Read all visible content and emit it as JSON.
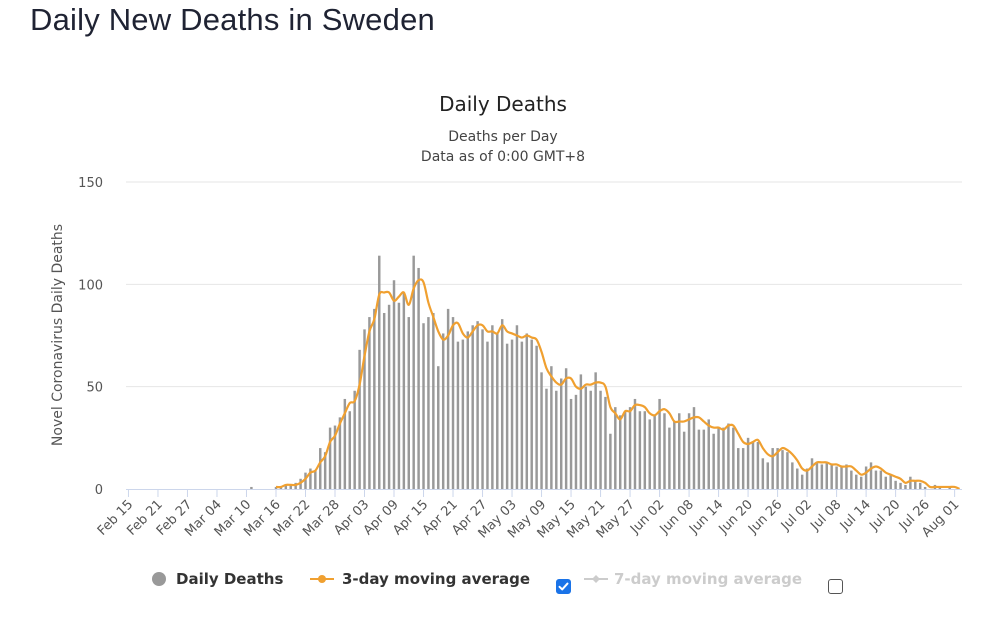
{
  "page": {
    "title": "Daily New Deaths in Sweden"
  },
  "legend": {
    "daily": "Daily Deaths",
    "ma3": "3-day moving average",
    "ma7": "7-day moving average",
    "ma3_checked": true,
    "ma7_checked": false
  },
  "colors": {
    "bars": "#999999",
    "ma3": "#f0a030",
    "ma7": "#cccccc",
    "grid": "#e6e6e6",
    "checkbox": "#1a73e8"
  },
  "chart_data": {
    "type": "bar",
    "title": "Daily Deaths",
    "subtitle": [
      "Deaths per Day",
      "Data as of 0:00 GMT+8"
    ],
    "xlabel": "",
    "ylabel": "Novel Coronavirus Daily Deaths",
    "ylim": [
      0,
      150
    ],
    "yticks": [
      0,
      50,
      100,
      150
    ],
    "grid": true,
    "legend_position": "bottom",
    "xtick_labels": [
      "Feb 15",
      "Feb 21",
      "Feb 27",
      "Mar 04",
      "Mar 10",
      "Mar 16",
      "Mar 22",
      "Mar 28",
      "Apr 03",
      "Apr 09",
      "Apr 15",
      "Apr 21",
      "Apr 27",
      "May 03",
      "May 09",
      "May 15",
      "May 21",
      "May 27",
      "Jun 02",
      "Jun 08",
      "Jun 14",
      "Jun 20",
      "Jun 26",
      "Jul 02",
      "Jul 08",
      "Jul 14",
      "Jul 20",
      "Jul 26",
      "Aug 01"
    ],
    "x_start": "Feb 15",
    "series": [
      {
        "name": "Daily Deaths",
        "type": "bar",
        "values": [
          0,
          0,
          0,
          0,
          0,
          0,
          0,
          0,
          0,
          0,
          0,
          0,
          0,
          0,
          0,
          0,
          0,
          0,
          0,
          0,
          0,
          0,
          0,
          0,
          0,
          1,
          0,
          0,
          0,
          0,
          1,
          1,
          2,
          2,
          3,
          5,
          8,
          10,
          9,
          20,
          18,
          30,
          31,
          35,
          44,
          38,
          48,
          68,
          78,
          84,
          88,
          114,
          86,
          90,
          102,
          91,
          96,
          84,
          114,
          108,
          81,
          84,
          86,
          60,
          76,
          88,
          84,
          72,
          73,
          77,
          80,
          82,
          78,
          72,
          80,
          76,
          83,
          71,
          73,
          80,
          72,
          76,
          73,
          70,
          57,
          49,
          60,
          48,
          54,
          59,
          44,
          46,
          56,
          50,
          48,
          57,
          48,
          45,
          27,
          40,
          36,
          38,
          40,
          44,
          38,
          38,
          34,
          36,
          44,
          37,
          30,
          33,
          37,
          28,
          37,
          40,
          29,
          29,
          34,
          27,
          30,
          30,
          32,
          30,
          20,
          20,
          25,
          23,
          23,
          15,
          13,
          20,
          20,
          19,
          18,
          13,
          10,
          7,
          10,
          15,
          13,
          12,
          13,
          12,
          11,
          11,
          12,
          9,
          7,
          6,
          11,
          13,
          9,
          9,
          6,
          7,
          4,
          3,
          2,
          6,
          4,
          3,
          1,
          0,
          2,
          1,
          0,
          1,
          0,
          0
        ]
      },
      {
        "name": "3-day moving average",
        "type": "line",
        "values": [
          null,
          null,
          null,
          null,
          null,
          null,
          null,
          null,
          null,
          null,
          null,
          null,
          null,
          null,
          null,
          null,
          null,
          null,
          null,
          null,
          null,
          null,
          null,
          null,
          null,
          null,
          null,
          null,
          null,
          null,
          1,
          1,
          2,
          2,
          2,
          3,
          5,
          8,
          9,
          13,
          16,
          23,
          26,
          32,
          37,
          42,
          43,
          51,
          65,
          77,
          83,
          95,
          96,
          96,
          92,
          94,
          96,
          90,
          98,
          102,
          101,
          91,
          84,
          77,
          73,
          75,
          80,
          81,
          76,
          74,
          77,
          80,
          80,
          77,
          77,
          76,
          80,
          77,
          76,
          75,
          74,
          75,
          74,
          73,
          67,
          59,
          55,
          52,
          51,
          54,
          54,
          50,
          49,
          51,
          51,
          52,
          52,
          50,
          40,
          37,
          34,
          38,
          38,
          41,
          41,
          40,
          37,
          36,
          38,
          39,
          37,
          33,
          33,
          33,
          34,
          35,
          35,
          33,
          31,
          30,
          30,
          29,
          31,
          31,
          27,
          23,
          22,
          23,
          24,
          20,
          17,
          16,
          18,
          20,
          19,
          17,
          14,
          10,
          9,
          11,
          13,
          13,
          13,
          12,
          12,
          11,
          11,
          11,
          9,
          7,
          8,
          10,
          11,
          10,
          8,
          7,
          6,
          5,
          3,
          4,
          4,
          4,
          3,
          1,
          1,
          1,
          1,
          1,
          1,
          0
        ]
      }
    ]
  }
}
